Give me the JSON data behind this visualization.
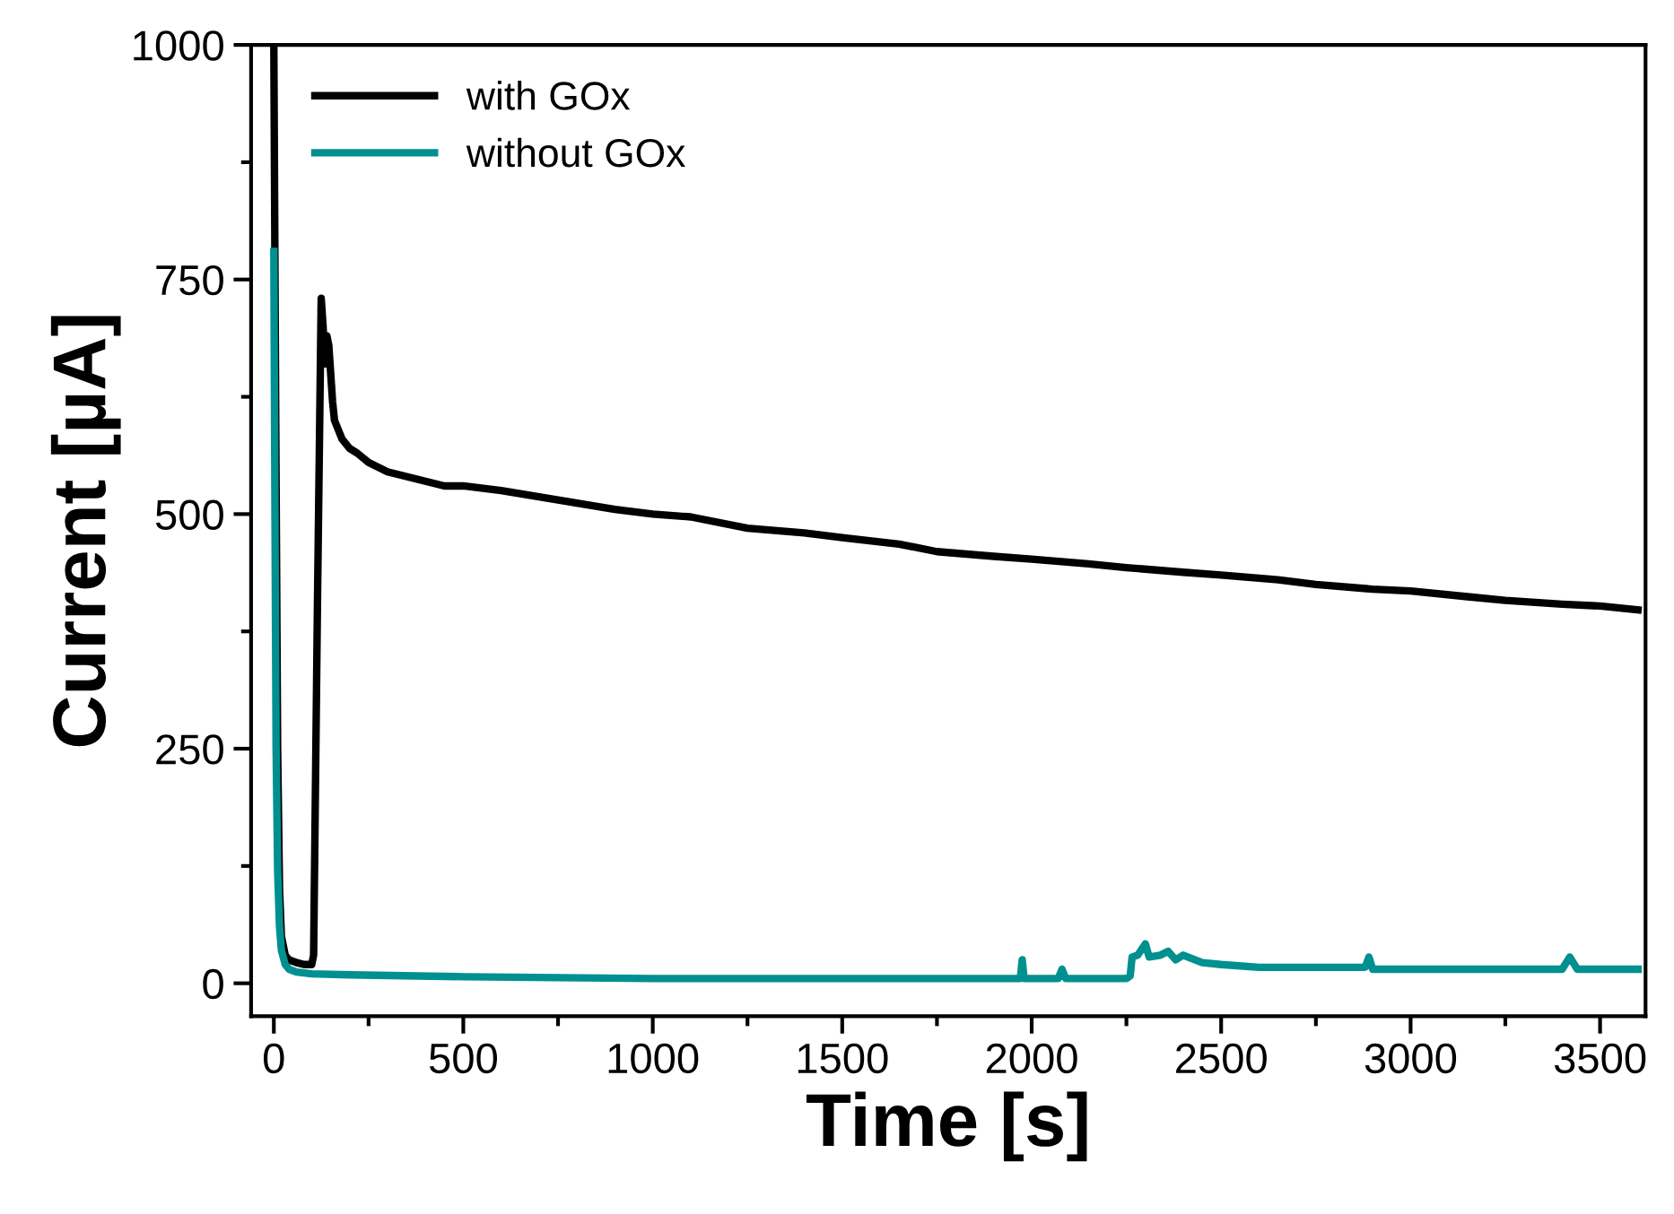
{
  "chart_data": {
    "type": "line",
    "xlabel": "Time [s]",
    "ylabel": "Current [µA]",
    "xlim": [
      -60,
      3620
    ],
    "ylim": [
      -35,
      1000
    ],
    "xticks": [
      0,
      500,
      1000,
      1500,
      2000,
      2500,
      3000,
      3500
    ],
    "yticks": [
      0,
      250,
      500,
      750,
      1000
    ],
    "grid": false,
    "legend": "top left",
    "marker": "none",
    "line_style": "solid",
    "series": [
      {
        "name": "with GOx",
        "color": "#000000",
        "x": [
          0,
          5,
          10,
          15,
          20,
          30,
          40,
          60,
          80,
          100,
          105,
          115,
          125,
          130,
          135,
          140,
          145,
          150,
          155,
          160,
          170,
          180,
          200,
          220,
          250,
          300,
          350,
          400,
          450,
          500,
          600,
          750,
          900,
          1000,
          1100,
          1250,
          1400,
          1500,
          1650,
          1750,
          1900,
          2000,
          2150,
          2250,
          2400,
          2500,
          2650,
          2750,
          2900,
          3000,
          3150,
          3250,
          3400,
          3500,
          3600
        ],
        "values": [
          1000,
          600,
          250,
          100,
          50,
          30,
          25,
          22,
          20,
          20,
          30,
          400,
          730,
          700,
          660,
          690,
          680,
          650,
          620,
          600,
          590,
          580,
          570,
          565,
          555,
          545,
          540,
          535,
          530,
          530,
          525,
          515,
          505,
          500,
          497,
          485,
          480,
          475,
          468,
          460,
          455,
          452,
          447,
          443,
          438,
          435,
          430,
          425,
          420,
          418,
          412,
          408,
          404,
          402,
          398
        ]
      },
      {
        "name": "without GOx",
        "color": "#009090",
        "x": [
          0,
          3,
          6,
          10,
          15,
          20,
          30,
          40,
          60,
          100,
          200,
          500,
          1000,
          1500,
          1970,
          1975,
          1980,
          1985,
          2070,
          2080,
          2090,
          2250,
          2260,
          2265,
          2280,
          2300,
          2310,
          2340,
          2360,
          2380,
          2400,
          2450,
          2500,
          2600,
          2880,
          2890,
          2900,
          3000,
          3400,
          3420,
          3440,
          3600
        ],
        "values": [
          780,
          500,
          250,
          120,
          60,
          35,
          20,
          15,
          12,
          10,
          9,
          7,
          5,
          5,
          5,
          25,
          5,
          5,
          5,
          15,
          5,
          5,
          8,
          28,
          30,
          42,
          28,
          30,
          34,
          25,
          30,
          22,
          20,
          17,
          17,
          28,
          15,
          15,
          15,
          28,
          15,
          15
        ]
      }
    ]
  }
}
